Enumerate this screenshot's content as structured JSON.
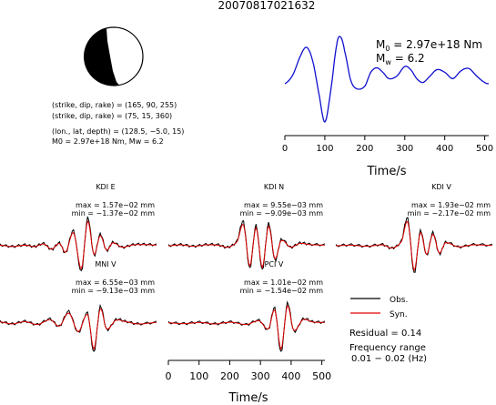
{
  "title": "20070817021632",
  "beachball": {
    "lines": [
      "(strike, dip, rake) = (165, 90, 255)",
      "(strike, dip, rake) = (75, 15, 360)",
      "(lon., lat, depth) = (128.5, −5.0, 15)",
      "M0 = 2.97e+18 Nm, Mw = 6.2"
    ]
  },
  "stf": {
    "m0_label": "M",
    "m0_sub": "0",
    "m0_value": " = 2.97e+18 Nm",
    "mw_label": "M",
    "mw_sub": "w",
    "mw_value": " = 6.2",
    "xlabel": "Time/s",
    "xticks": [
      "0",
      "100",
      "200",
      "300",
      "400",
      "500"
    ]
  },
  "waveforms": [
    {
      "station": "KDI E",
      "max": "max = 1.57e−02 mm",
      "min": "min = −1.37e−02 mm"
    },
    {
      "station": "KDI N",
      "max": "max = 9.55e−03 mm",
      "min": "min = −9.09e−03 mm"
    },
    {
      "station": "KDI V",
      "max": "max = 1.93e−02 mm",
      "min": "min = −2.17e−02 mm"
    },
    {
      "station": "MNI V",
      "max": "max = 6.55e−03 mm",
      "min": "min = −9.13e−03 mm"
    },
    {
      "station": "PCI V",
      "max": "max = 1.01e−02 mm",
      "min": "min = −1.54e−02 mm"
    }
  ],
  "wave_axis": {
    "xlabel": "Time/s",
    "xticks": [
      "0",
      "100",
      "200",
      "300",
      "400",
      "500"
    ]
  },
  "legend": {
    "obs": "Obs.",
    "syn": "Syn.",
    "residual": "Residual = 0.14",
    "freq_line1": "Frequency range",
    "freq_line2": "0.01 − 0.02 (Hz)"
  },
  "colors": {
    "observed": "#000000",
    "synthetic": "#e00000",
    "stf": "#1010d0"
  },
  "chart_data": {
    "type": "line",
    "title": "20070817021632",
    "xlabel": "Time/s",
    "ylabel": "",
    "xlim": [
      0,
      510
    ],
    "x": [
      0,
      20,
      40,
      55,
      70,
      85,
      100,
      115,
      130,
      140,
      150,
      165,
      180,
      200,
      215,
      230,
      245,
      260,
      280,
      300,
      315,
      330,
      345,
      360,
      380,
      400,
      420,
      440,
      460,
      480,
      500,
      510
    ],
    "series": [
      {
        "values": [
          0.0,
          0.14,
          0.45,
          0.57,
          0.35,
          -0.15,
          -0.6,
          -0.1,
          0.62,
          0.73,
          0.5,
          0.05,
          -0.08,
          -0.04,
          0.18,
          0.25,
          0.18,
          0.08,
          0.12,
          0.27,
          0.22,
          0.08,
          0.02,
          0.1,
          0.22,
          0.18,
          0.08,
          0.2,
          0.24,
          0.12,
          0.02,
          0.0
        ]
      }
    ]
  }
}
